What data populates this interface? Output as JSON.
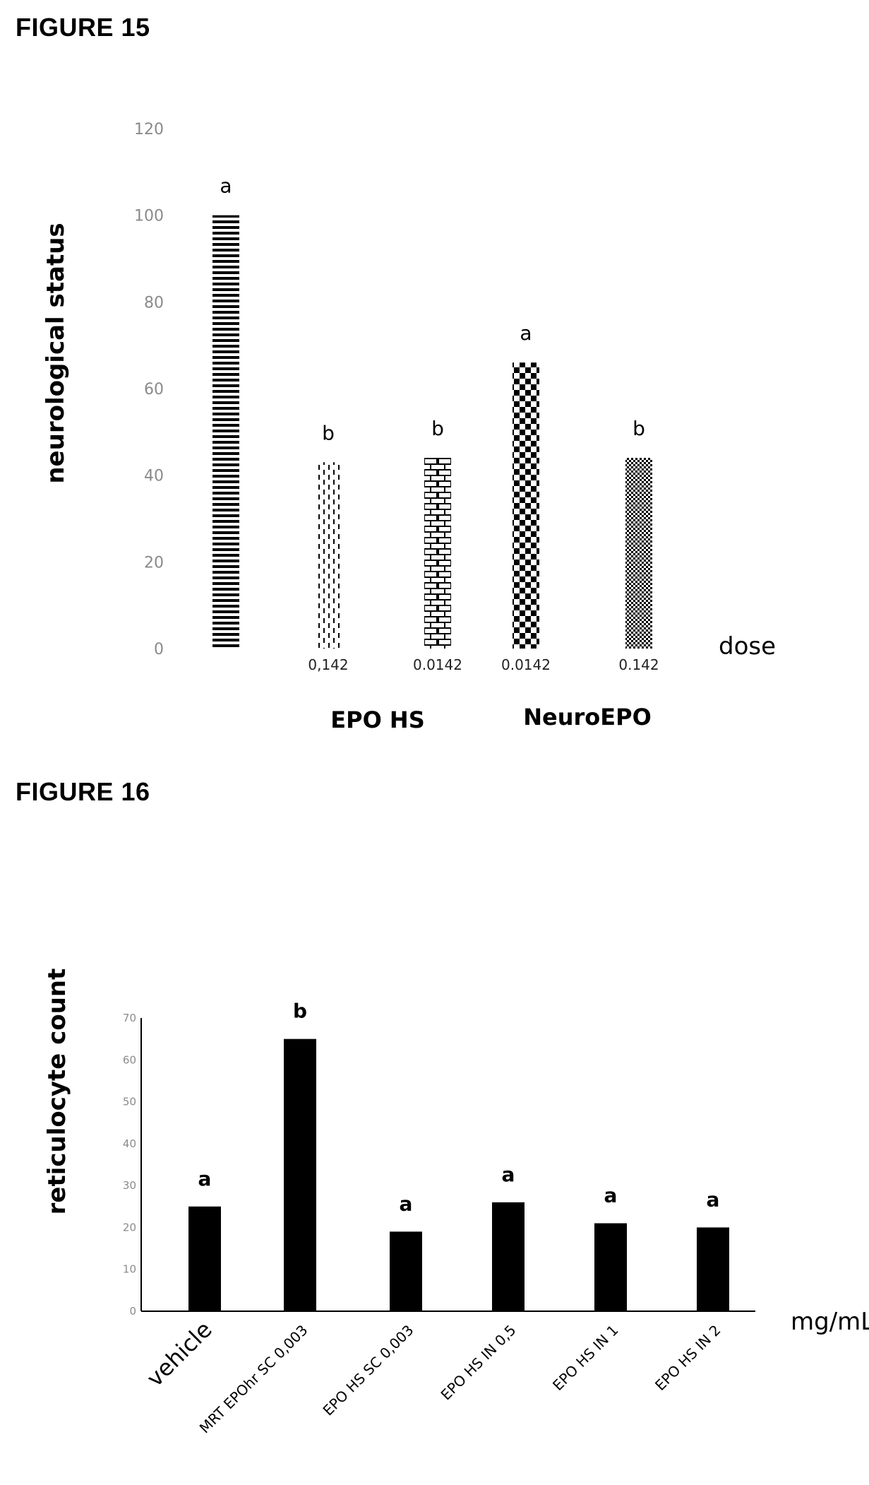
{
  "figures": [
    {
      "title": "FIGURE 15"
    },
    {
      "title": "FIGURE 16"
    }
  ],
  "chart_data": [
    {
      "type": "bar",
      "ylabel": "neurological status",
      "ylim": [
        0,
        120
      ],
      "yticks": [
        0,
        20,
        40,
        60,
        80,
        100,
        120
      ],
      "dose_unit_label": "dose",
      "group_labels": [
        "EPO HS",
        "NeuroEPO"
      ],
      "categories": [
        "",
        "0,142",
        "0.0142",
        "0.0142",
        "0.142"
      ],
      "values": [
        100,
        43,
        44,
        66,
        44
      ],
      "significance": [
        "a",
        "b",
        "b",
        "a",
        "b"
      ],
      "patterns": [
        "horizontal-stripes",
        "dashed-vertical",
        "brick",
        "checker",
        "fine-checker"
      ],
      "grid": false
    },
    {
      "type": "bar",
      "ylabel": "reticulocyte count",
      "ylim": [
        0,
        70
      ],
      "yticks": [
        0,
        10,
        20,
        30,
        40,
        50,
        60,
        70
      ],
      "unit_label": "mg/mL",
      "categories": [
        "vehicle",
        "MRT EPOhr SC 0,003",
        "EPO HS SC 0,003",
        "EPO HS IN  0,5",
        "EPO HS IN  1",
        "EPO HS IN  2"
      ],
      "values": [
        25,
        65,
        19,
        26,
        21,
        20
      ],
      "significance": [
        "a",
        "b",
        "a",
        "a",
        "a",
        "a"
      ],
      "bar_color": "#000000",
      "grid": false
    }
  ]
}
